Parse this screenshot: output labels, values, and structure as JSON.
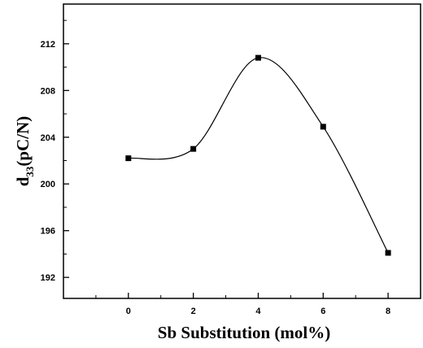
{
  "chart_data": {
    "type": "line",
    "title": "",
    "xlabel": "Sb Substitution (mol%)",
    "ylabel_main": "d",
    "ylabel_sub": "33",
    "ylabel_rest": "(pC/N)",
    "x": [
      0,
      2,
      4,
      6,
      8
    ],
    "y": [
      202.2,
      203.0,
      210.8,
      204.9,
      194.1
    ],
    "xticks": [
      "0",
      "2",
      "4",
      "6",
      "8"
    ],
    "yticks": [
      "192",
      "196",
      "200",
      "204",
      "208",
      "212"
    ],
    "xlim": [
      -2,
      9
    ],
    "ylim": [
      190.2,
      215.4
    ],
    "marker": "square",
    "curve": "smooth",
    "grid": false,
    "color": "#000000"
  }
}
